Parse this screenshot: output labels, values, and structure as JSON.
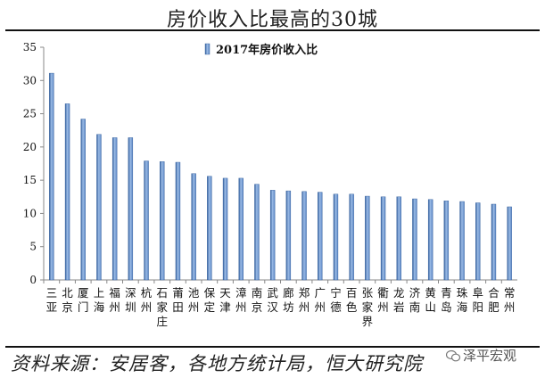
{
  "title": "房价收入比最高的30城",
  "source": "资料来源：安居客，各地方统计局，恒大研究院",
  "watermark": "泽平宏观",
  "colors": {
    "bar": "#5b86c4",
    "bar_dark": "#2f5b9a",
    "bar_light": "#9cbce6",
    "axis": "#888888"
  },
  "chart_data": {
    "type": "bar",
    "legend": {
      "label": "2017年房价收入比",
      "placement": "top-center"
    },
    "ylim": [
      0,
      35
    ],
    "yticks": [
      0,
      5,
      10,
      15,
      20,
      25,
      30,
      35
    ],
    "grid": false,
    "categories": [
      "三亚",
      "北京",
      "厦门",
      "上海",
      "福州",
      "深圳",
      "杭州",
      "石家庄",
      "莆田",
      "池州",
      "保定",
      "天津",
      "漳州",
      "南京",
      "武汉",
      "廊坊",
      "郑州",
      "广州",
      "宁德",
      "百色",
      "张家界",
      "衢州",
      "龙岩",
      "济南",
      "黄山",
      "青岛",
      "珠海",
      "阜阳",
      "合肥",
      "常州"
    ],
    "series": [
      {
        "values": [
          31.1,
          26.5,
          24.2,
          21.9,
          21.4,
          21.4,
          17.9,
          17.8,
          17.7,
          16.0,
          15.6,
          15.3,
          15.3,
          14.4,
          13.5,
          13.4,
          13.3,
          13.2,
          12.9,
          12.9,
          12.6,
          12.5,
          12.5,
          12.2,
          12.1,
          11.9,
          11.8,
          11.6,
          11.4,
          11.0
        ]
      }
    ]
  }
}
